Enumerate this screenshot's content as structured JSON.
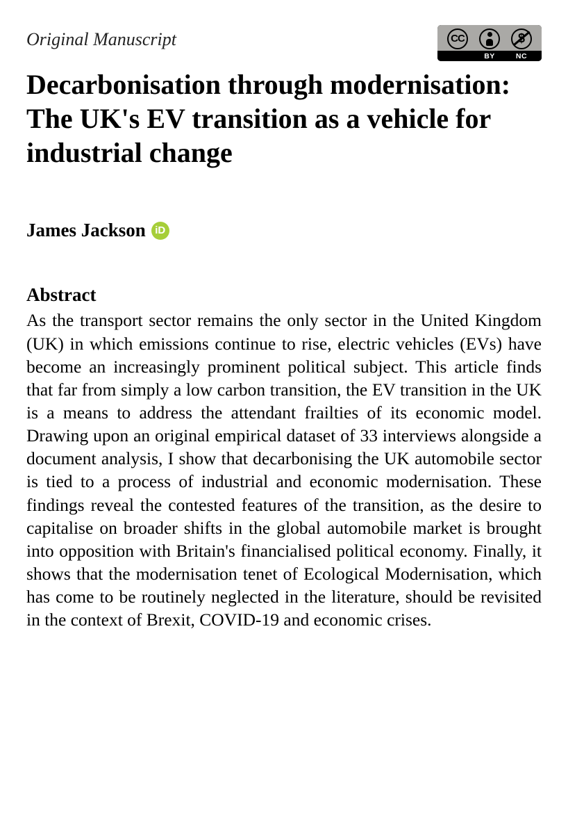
{
  "article": {
    "type_label": "Original Manuscript",
    "title": "Decarbonisation through modernisation: The UK's EV transition as a vehicle for industrial change",
    "author": "James Jackson",
    "abstract_heading": "Abstract",
    "abstract": "As the transport sector remains the only sector in the United Kingdom (UK) in which emissions continue to rise, electric vehicles (EVs) have become an increasingly prominent political subject. This article finds that far from simply a low carbon transition, the EV transition in the UK is a means to address the attendant frailties of its economic model. Drawing upon an original empirical dataset of 33 interviews alongside a document analysis, I show that decarbonising the UK automobile sector is tied to a process of industrial and economic modernisation. These findings reveal the contested features of the transition, as the desire to capitalise on broader shifts in the global automobile market is brought into opposition with Britain's financialised political economy. Finally, it shows that the modernisation tenet of Ecological Modernisation, which has come to be routinely neglected in the literature, should be revisited in the context of Brexit, COVID-19 and economic crises."
  },
  "cc_badge": {
    "main": "CC",
    "nc_symbol": "$",
    "labels": [
      "",
      "BY",
      "NC"
    ]
  },
  "orcid": {
    "glyph": "iD"
  },
  "colors": {
    "background": "#ffffff",
    "text": "#000000",
    "orcid_green": "#a6ce39",
    "cc_badge_bg": "#aaa9a6",
    "cc_badge_frame": "#000000"
  },
  "typography": {
    "title_fontsize": 40,
    "body_fontsize": 25.5,
    "author_fontsize": 27,
    "type_label_fontsize": 26,
    "font_family": "Georgia, Times New Roman, serif"
  }
}
